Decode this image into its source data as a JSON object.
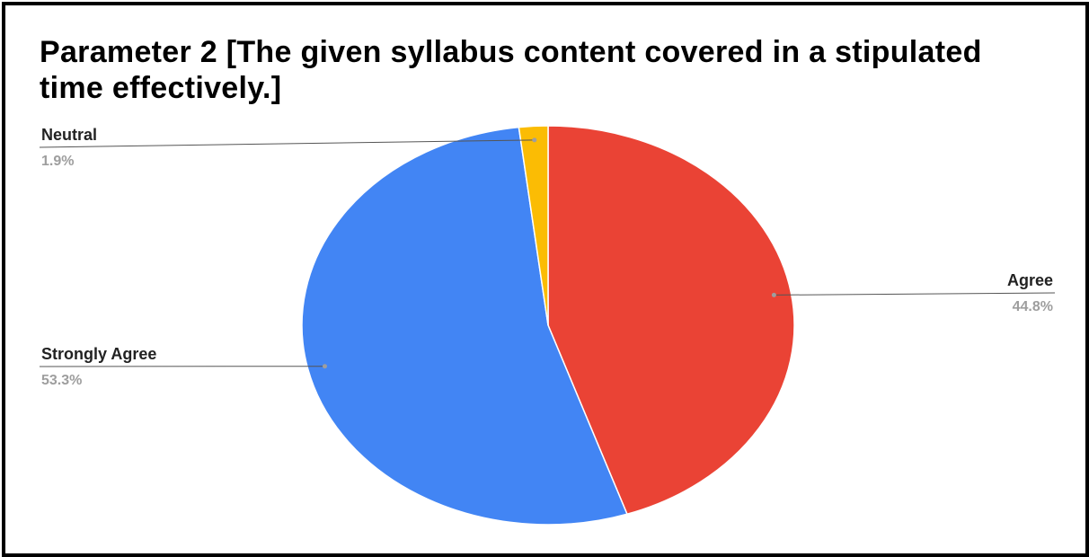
{
  "chart_data": {
    "type": "pie",
    "title": "Parameter 2 [The given syllabus content covered in a stipulated time  effectively.]",
    "slices": [
      {
        "label": "Agree",
        "value": 44.8,
        "percent_label": "44.8%",
        "color": "#ea4335"
      },
      {
        "label": "Strongly Agree",
        "value": 53.3,
        "percent_label": "53.3%",
        "color": "#4285f4"
      },
      {
        "label": "Neutral",
        "value": 1.9,
        "percent_label": "1.9%",
        "color": "#fbbc04"
      }
    ],
    "start_angle": "12 o'clock",
    "direction": "clockwise",
    "legend": "none",
    "labels": "outside with leader lines"
  }
}
